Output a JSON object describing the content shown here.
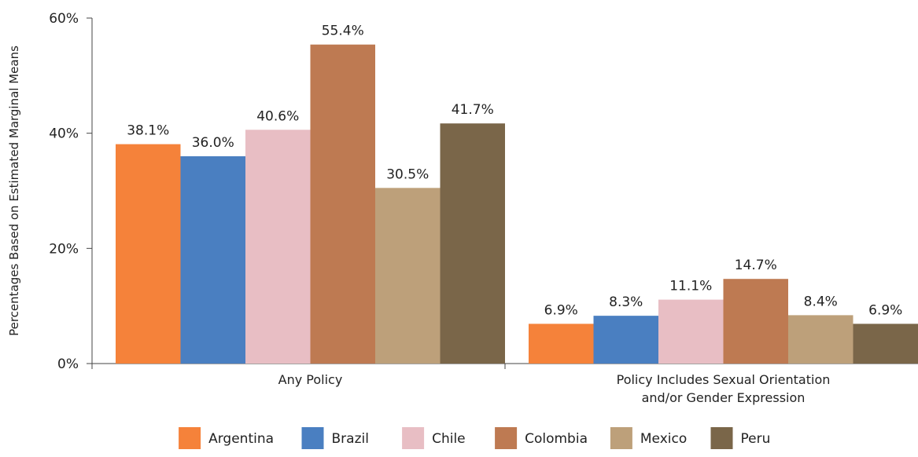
{
  "chart_data": {
    "type": "bar",
    "ylabel": "Percentages Based on Estimated Marginal Means",
    "ylim": [
      0,
      60
    ],
    "yticks": [
      "0%",
      "20%",
      "40%",
      "60%"
    ],
    "categories": [
      [
        "Any Policy"
      ],
      [
        "Policy Includes Sexual Orientation",
        "and/or Gender Expression"
      ]
    ],
    "series": [
      {
        "name": "Argentina",
        "color": "#F5823A",
        "values": [
          38.1,
          6.9
        ],
        "labels": [
          "38.1%",
          "6.9%"
        ]
      },
      {
        "name": "Brazil",
        "color": "#4A7FC1",
        "values": [
          36.0,
          8.3
        ],
        "labels": [
          "36.0%",
          "8.3%"
        ]
      },
      {
        "name": "Chile",
        "color": "#E8BEC4",
        "values": [
          40.6,
          11.1
        ],
        "labels": [
          "40.6%",
          "11.1%"
        ]
      },
      {
        "name": "Colombia",
        "color": "#BE7A52",
        "values": [
          55.4,
          14.7
        ],
        "labels": [
          "55.4%",
          "14.7%"
        ]
      },
      {
        "name": "Mexico",
        "color": "#BDA07A",
        "values": [
          30.5,
          8.4
        ],
        "labels": [
          "30.5%",
          "8.4%"
        ]
      },
      {
        "name": "Peru",
        "color": "#7A6649",
        "values": [
          41.7,
          6.9
        ],
        "labels": [
          "41.7%",
          "6.9%"
        ]
      }
    ],
    "grid": false,
    "legend_position": "bottom"
  }
}
